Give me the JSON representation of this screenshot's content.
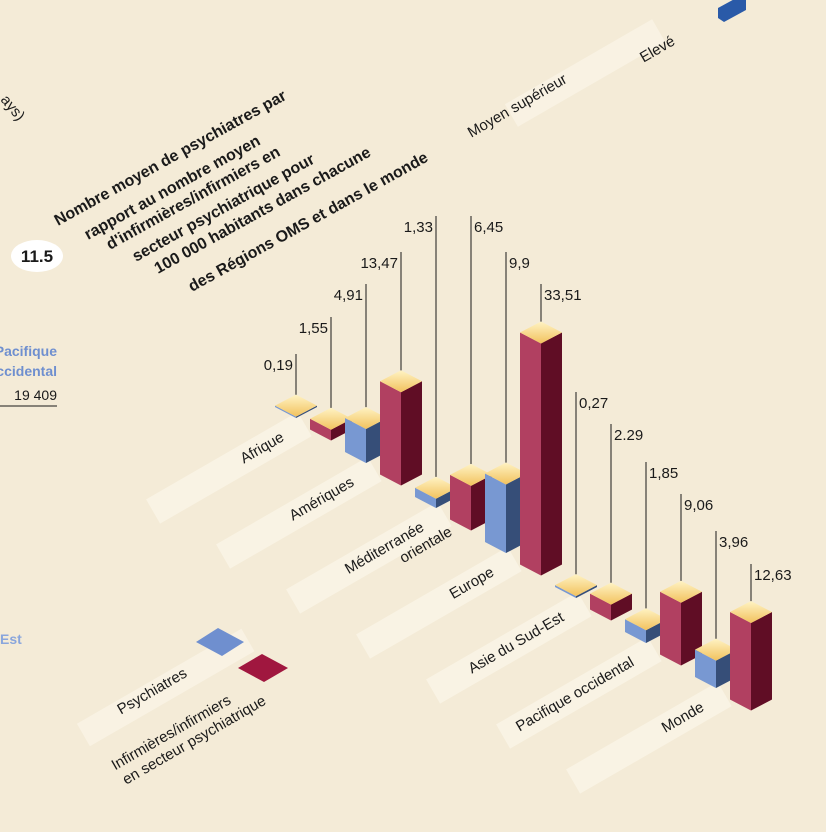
{
  "chart_data": {
    "type": "bar",
    "figure_number": "11.5",
    "title": [
      "Nombre moyen de psychiatres par",
      "rapport au nombre moyen",
      "d'infirmières/infirmiers en",
      "secteur psychiatrique pour",
      "100 000 habitants dans chacune",
      "des Régions OMS et dans le monde"
    ],
    "categories": [
      "Afrique",
      "Amériques",
      "Méditerranée orientale",
      "Europe",
      "Asie du Sud-Est",
      "Pacifique occidental",
      "Monde"
    ],
    "series": [
      {
        "name": "Psychiatres",
        "color": "#5b82c8",
        "values": [
          0.19,
          4.91,
          1.33,
          9.9,
          0.27,
          1.85,
          3.96
        ],
        "value_labels": [
          "0,19",
          "4,91",
          "1,33",
          "9,9",
          "0,27",
          "1,85",
          "3,96"
        ]
      },
      {
        "name": "Infirmières/infirmiers en secteur psychiatrique",
        "color": "#a0173f",
        "values": [
          1.55,
          13.47,
          6.45,
          33.51,
          2.29,
          9.06,
          12.63
        ],
        "value_labels": [
          "1,55",
          "13,47",
          "6,45",
          "33,51",
          "2.29",
          "9,06",
          "12,63"
        ]
      }
    ],
    "annotations": [
      "Moyen supérieur",
      "Elevé",
      "Pacifique",
      "occidental",
      "19 409",
      "ays)",
      "Est"
    ]
  }
}
